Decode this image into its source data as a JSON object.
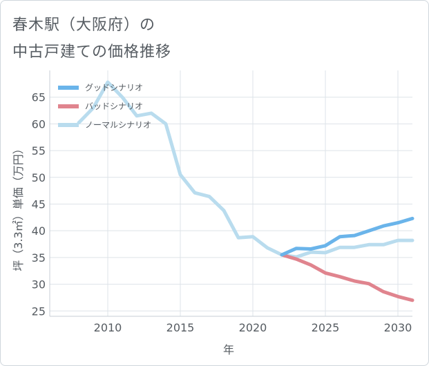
{
  "title_line1": "春木駅（大阪府）の",
  "title_line2": "中古戸建ての価格推移",
  "chart_data": {
    "type": "line",
    "xlabel": "年",
    "ylabel": "坪（3.3㎡）単価（万円）",
    "xlim": [
      2006,
      2031
    ],
    "ylim": [
      24,
      70
    ],
    "x_ticks": [
      2010,
      2015,
      2020,
      2025,
      2030
    ],
    "y_ticks": [
      25,
      30,
      35,
      40,
      45,
      50,
      55,
      60,
      65
    ],
    "grid": true,
    "legend_position": "top-left",
    "series": [
      {
        "name": "グッドシナリオ",
        "color": "#6ab4ea",
        "x": [
          2022,
          2023,
          2024,
          2025,
          2026,
          2027,
          2028,
          2029,
          2030,
          2031
        ],
        "y": [
          35.5,
          36.7,
          36.6,
          37.2,
          38.9,
          39.1,
          40.0,
          40.9,
          41.5,
          42.3
        ]
      },
      {
        "name": "バッドシナリオ",
        "color": "#e0848e",
        "x": [
          2022,
          2023,
          2024,
          2025,
          2026,
          2027,
          2028,
          2029,
          2030,
          2031
        ],
        "y": [
          35.5,
          34.7,
          33.6,
          32.1,
          31.4,
          30.6,
          30.1,
          28.6,
          27.7,
          27.0
        ]
      },
      {
        "name": "ノーマルシナリオ",
        "color": "#b9dcee",
        "x": [
          2008,
          2009,
          2010,
          2011,
          2012,
          2013,
          2014,
          2015,
          2016,
          2017,
          2018,
          2019,
          2020,
          2021,
          2022,
          2023,
          2024,
          2025,
          2026,
          2027,
          2028,
          2029,
          2030,
          2031
        ],
        "y": [
          60.2,
          63.0,
          67.8,
          65.0,
          61.5,
          62.0,
          60.0,
          50.5,
          47.1,
          46.4,
          43.8,
          38.7,
          38.9,
          36.8,
          35.5,
          35.1,
          36.0,
          35.9,
          36.9,
          36.9,
          37.4,
          37.4,
          38.2,
          38.2
        ]
      }
    ]
  }
}
